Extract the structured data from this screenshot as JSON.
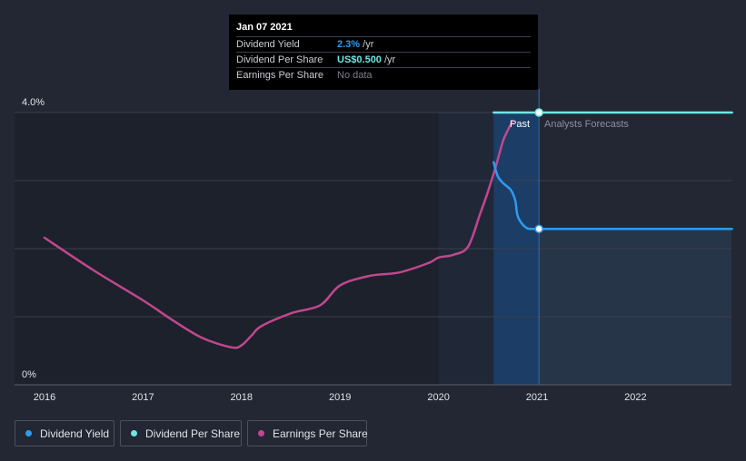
{
  "tooltip": {
    "date": "Jan 07 2021",
    "rows": [
      {
        "label": "Dividend Yield",
        "value": "2.3%",
        "unit": " /yr",
        "color": "#2e9bf0"
      },
      {
        "label": "Dividend Per Share",
        "value": "US$0.500",
        "unit": " /yr",
        "color": "#6ee7e3"
      },
      {
        "label": "Earnings Per Share",
        "value": "No data",
        "unit": "",
        "color": "#7b818c"
      }
    ]
  },
  "annotations": {
    "past": "Past",
    "forecast": "Analysts Forecasts"
  },
  "legend": [
    {
      "label": "Dividend Yield",
      "color": "#2e9bf0"
    },
    {
      "label": "Dividend Per Share",
      "color": "#6ee7e3"
    },
    {
      "label": "Earnings Per Share",
      "color": "#c2478f"
    }
  ],
  "chart_data": {
    "type": "line",
    "title": "",
    "xlabel": "",
    "ylabel": "",
    "xlim": [
      2016.0,
      2022.98
    ],
    "ylim": [
      0,
      4.0
    ],
    "yticks": [
      {
        "value": 4.0,
        "label": "4.0%"
      },
      {
        "value": 0,
        "label": "0%"
      }
    ],
    "xticks": [
      {
        "value": 2016,
        "label": "2016"
      },
      {
        "value": 2017,
        "label": "2017"
      },
      {
        "value": 2018,
        "label": "2018"
      },
      {
        "value": 2019,
        "label": "2019"
      },
      {
        "value": 2020,
        "label": "2020"
      },
      {
        "value": 2021,
        "label": "2021"
      },
      {
        "value": 2022,
        "label": "2022"
      }
    ],
    "grid": true,
    "past_region": [
      2020.0,
      2021.02
    ],
    "highlight_region": [
      2020.56,
      2021.02
    ],
    "current_date": 2021.02,
    "series": [
      {
        "name": "Dividend Yield",
        "color": "#2e9bf0",
        "x": [
          2020.56,
          2020.6,
          2020.65,
          2020.7,
          2020.74,
          2020.78,
          2020.8,
          2020.84,
          2020.9,
          2020.96,
          2021.02,
          2021.5,
          2022.0,
          2022.5,
          2022.98
        ],
        "y": [
          3.27,
          3.07,
          2.97,
          2.91,
          2.85,
          2.7,
          2.5,
          2.38,
          2.3,
          2.29,
          2.29,
          2.29,
          2.29,
          2.29,
          2.29
        ],
        "marker_at": 2021.02
      },
      {
        "name": "Dividend Per Share",
        "color": "#6ee7e3",
        "x": [
          2020.56,
          2021.02,
          2022.0,
          2022.98
        ],
        "y": [
          4.0,
          4.0,
          4.0,
          4.0
        ],
        "marker_at": 2021.02
      },
      {
        "name": "Earnings Per Share",
        "color": "#c2478f",
        "x": [
          2016.0,
          2016.5,
          2017.0,
          2017.3,
          2017.6,
          2017.9,
          2018.0,
          2018.1,
          2018.2,
          2018.5,
          2018.8,
          2019.0,
          2019.3,
          2019.6,
          2019.9,
          2020.0,
          2020.15,
          2020.3,
          2020.42,
          2020.5,
          2020.58,
          2020.66,
          2020.75
        ],
        "y": [
          2.16,
          1.68,
          1.24,
          0.95,
          0.69,
          0.55,
          0.58,
          0.72,
          0.86,
          1.05,
          1.17,
          1.46,
          1.6,
          1.65,
          1.79,
          1.87,
          1.91,
          2.03,
          2.5,
          2.83,
          3.2,
          3.6,
          3.87
        ]
      }
    ]
  }
}
